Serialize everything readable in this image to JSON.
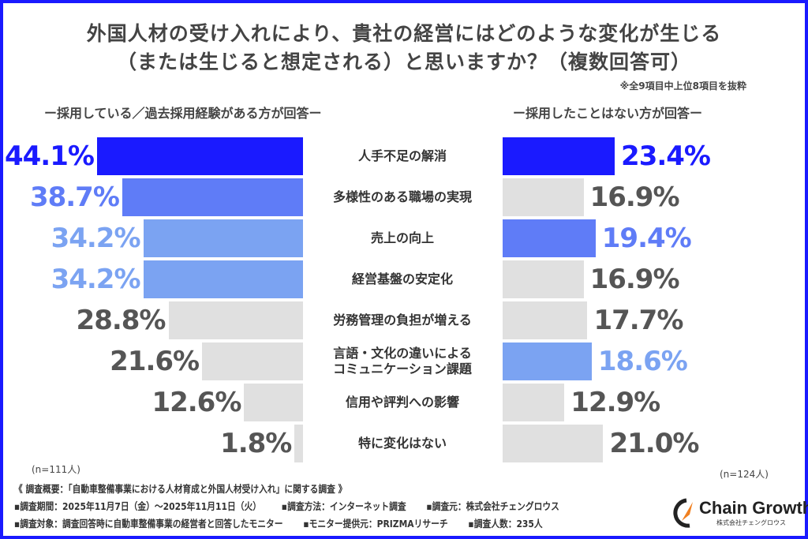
{
  "title_line1": "外国人材の受け入れにより、貴社の経営にはどのような変化が生じる",
  "title_line2": "（または生じると想定される）と思いますか？（複数回答可）",
  "note": "※全9項目中上位8項目を抜粋",
  "colors": {
    "frame": "#1a1aff",
    "top": "#1a1aff",
    "second": "#5f7cf7",
    "third": "#7ba3f2",
    "other": "#e0e0e0",
    "other_text": "#555555"
  },
  "chart_data": {
    "type": "bar",
    "orientation": "horizontal",
    "categories": [
      "人手不足の解消",
      "多様性のある職場の実現",
      "売上の向上",
      "経営基盤の安定化",
      "労務管理の負担が増える",
      "言語・文化の違いによる\nコミュニケーション課題",
      "信用や評判への影響",
      "特に変化はない"
    ],
    "series": [
      {
        "name": "ー採用している／過去採用経験がある方が回答ー",
        "values": [
          44.1,
          38.7,
          34.2,
          34.2,
          28.8,
          21.6,
          12.6,
          1.8
        ],
        "labels": [
          "44.1%",
          "38.7%",
          "34.2%",
          "34.2%",
          "28.8%",
          "21.6%",
          "12.6%",
          "1.8%"
        ],
        "n": "(n=111人)",
        "highlight": [
          "top",
          "second",
          "third",
          "third",
          "other",
          "other",
          "other",
          "other"
        ]
      },
      {
        "name": "ー採用したことはない方が回答ー",
        "values": [
          23.4,
          16.9,
          19.4,
          16.9,
          17.7,
          18.6,
          12.9,
          21.0
        ],
        "labels": [
          "23.4%",
          "16.9%",
          "19.4%",
          "16.9%",
          "17.7%",
          "18.6%",
          "12.9%",
          "21.0%"
        ],
        "n": "(n=124人)",
        "highlight": [
          "top",
          "other",
          "second",
          "other",
          "other",
          "third",
          "other",
          "other"
        ]
      }
    ],
    "unit": "%"
  },
  "footer": {
    "overview": "《 調査概要：「自動車整備事業における人材育成と外国人材受け入れ」に関する調査 》",
    "line2": [
      "▪調査期間：2025年11月7日（金）～2025年11月11日（火）",
      "▪調査方法：インターネット調査",
      "▪調査元：株式会社チェングロウス"
    ],
    "line3": [
      "▪調査対象：調査回答時に自動車整備事業の経営者と回答したモニター",
      "▪モニター提供元：PRIZMAリサーチ",
      "▪調査人数：235人"
    ]
  },
  "logo": {
    "name": "Chain Growth",
    "sub": "株式会社チェングロウス"
  }
}
